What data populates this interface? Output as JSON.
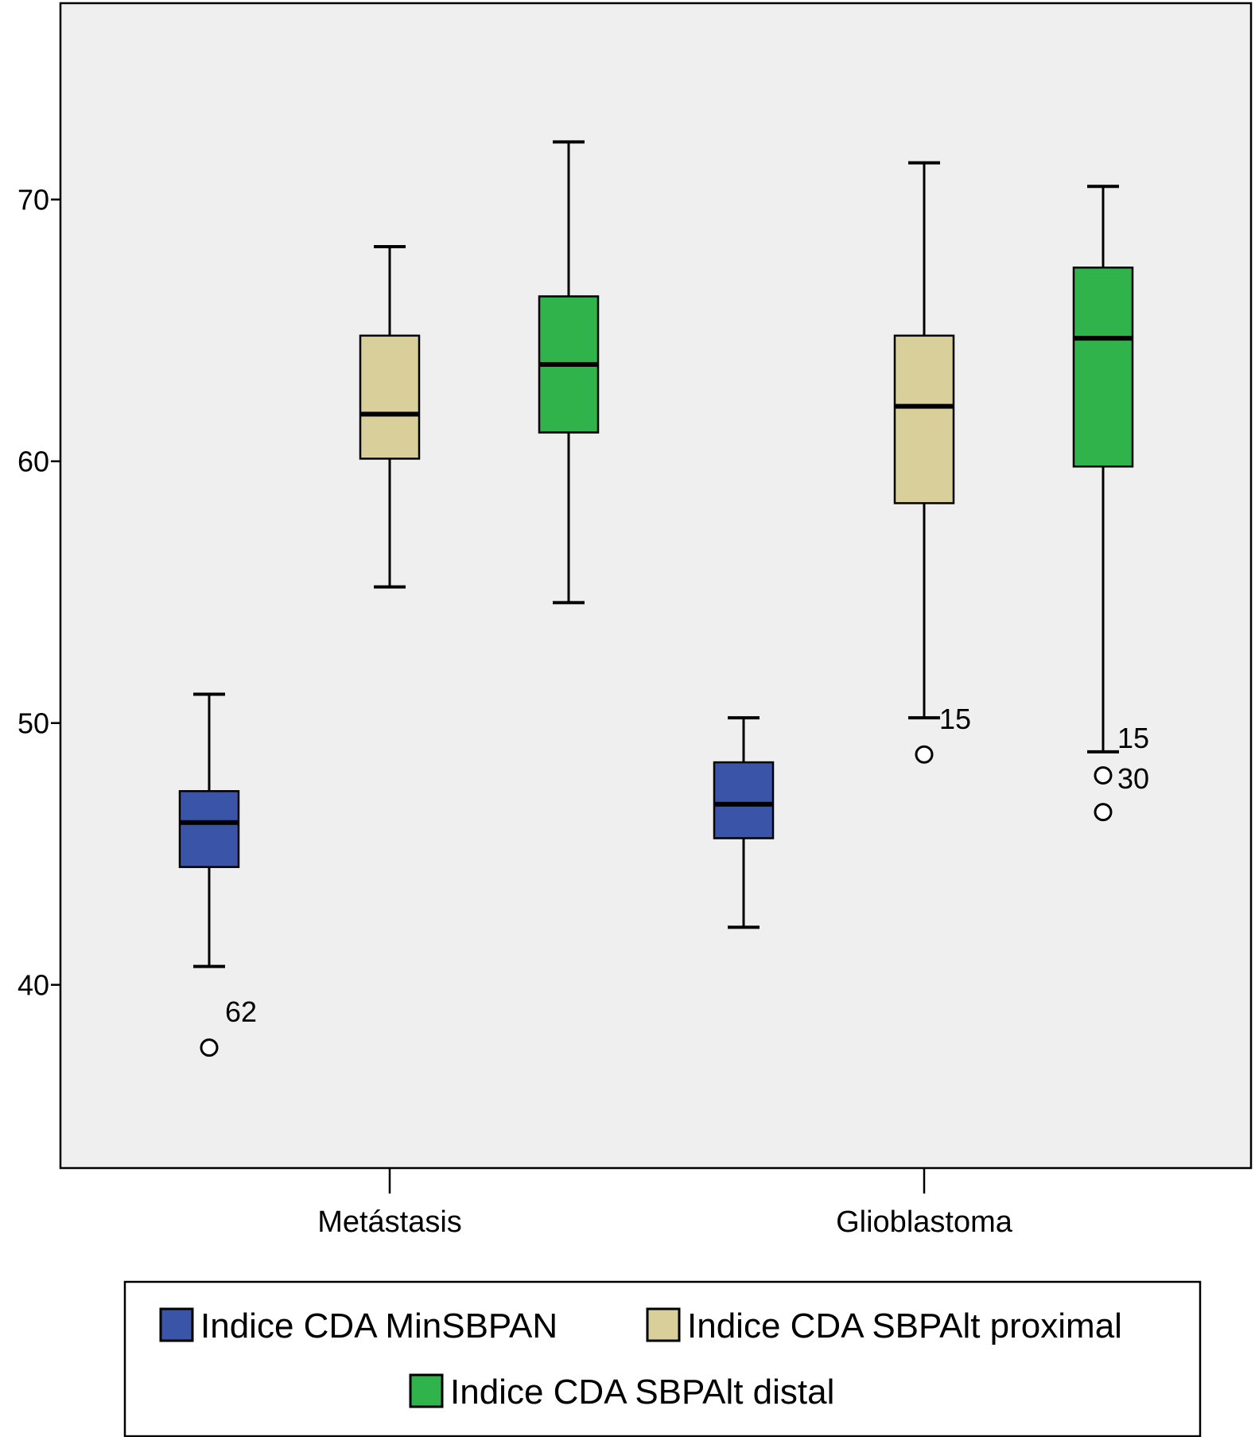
{
  "chart_data": {
    "type": "boxplot",
    "title": "",
    "xlabel": "",
    "ylabel": "",
    "ylim": [
      33.0,
      77.5
    ],
    "yticks": [
      40,
      50,
      60,
      70
    ],
    "categories": [
      "Metástasis",
      "Glioblastoma"
    ],
    "legend_position": "bottom",
    "grid": false,
    "colors": {
      "plot_background": "#efefef",
      "axis": "#000000"
    },
    "series": [
      {
        "name": "Indice CDA MinSBPAN",
        "color": "#3a54a8",
        "boxes": [
          {
            "whisker_low": 40.7,
            "q1": 44.5,
            "median": 46.2,
            "q3": 47.4,
            "whisker_high": 51.1,
            "outliers": [
              {
                "value": 37.6,
                "label": "62"
              }
            ]
          },
          {
            "whisker_low": 42.2,
            "q1": 45.6,
            "median": 46.9,
            "q3": 48.5,
            "whisker_high": 50.2,
            "outliers": []
          }
        ]
      },
      {
        "name": "Indice CDA SBPAlt proximal",
        "color": "#d9cf9b",
        "boxes": [
          {
            "whisker_low": 55.2,
            "q1": 60.1,
            "median": 61.8,
            "q3": 64.8,
            "whisker_high": 68.2,
            "outliers": []
          },
          {
            "whisker_low": 50.2,
            "q1": 58.4,
            "median": 62.1,
            "q3": 64.8,
            "whisker_high": 71.4,
            "outliers": [
              {
                "value": 48.8,
                "label": "15"
              }
            ]
          }
        ]
      },
      {
        "name": "Indice CDA SBPAlt distal",
        "color": "#2fb34a",
        "boxes": [
          {
            "whisker_low": 54.6,
            "q1": 61.1,
            "median": 63.7,
            "q3": 66.3,
            "whisker_high": 72.2,
            "outliers": []
          },
          {
            "whisker_low": 48.9,
            "q1": 59.8,
            "median": 64.7,
            "q3": 67.4,
            "whisker_high": 70.5,
            "outliers": [
              {
                "value": 48.0,
                "label": "15"
              },
              {
                "value": 46.6,
                "label": "30"
              }
            ]
          }
        ]
      }
    ]
  }
}
